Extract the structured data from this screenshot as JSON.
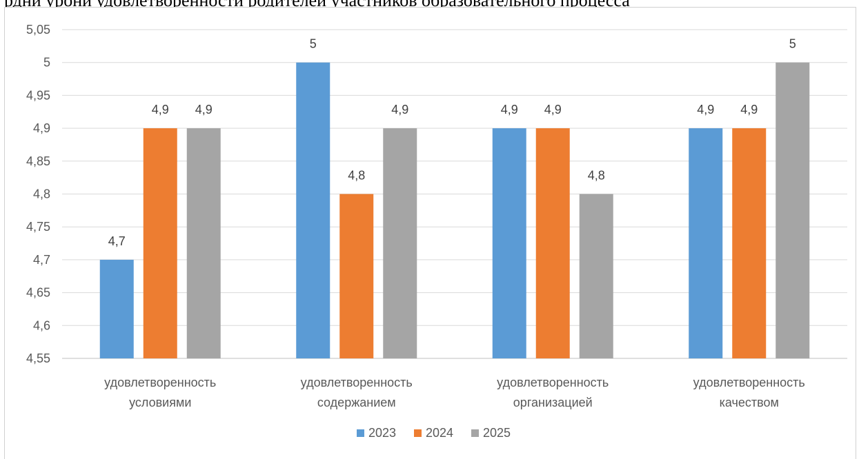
{
  "header_fragment": "рдни урони удовлетворенности родителей участников образовательного процесса",
  "chart_data": {
    "type": "bar",
    "categories": [
      [
        "удовлетворенность",
        "условиями"
      ],
      [
        "удовлетворенность",
        "содержанием"
      ],
      [
        "удовлетворенность",
        "организацией"
      ],
      [
        "удовлетворенность",
        "качеством"
      ]
    ],
    "series": [
      {
        "name": "2023",
        "color": "#5b9bd5",
        "values": [
          4.7,
          5.0,
          4.9,
          4.9
        ],
        "labels": [
          "4,7",
          "5",
          "4,9",
          "4,9"
        ]
      },
      {
        "name": "2024",
        "color": "#ed7d31",
        "values": [
          4.9,
          4.8,
          4.9,
          4.9
        ],
        "labels": [
          "4,9",
          "4,8",
          "4,9",
          "4,9"
        ]
      },
      {
        "name": "2025",
        "color": "#a5a5a5",
        "values": [
          4.9,
          4.9,
          4.8,
          5.0
        ],
        "labels": [
          "4,9",
          "4,9",
          "4,8",
          "5"
        ]
      }
    ],
    "yticks": [
      "4,55",
      "4,6",
      "4,65",
      "4,7",
      "4,75",
      "4,8",
      "4,85",
      "4,9",
      "4,95",
      "5",
      "5,05"
    ],
    "ylim": [
      4.55,
      5.05
    ],
    "grid": true,
    "legend": "bottom"
  }
}
